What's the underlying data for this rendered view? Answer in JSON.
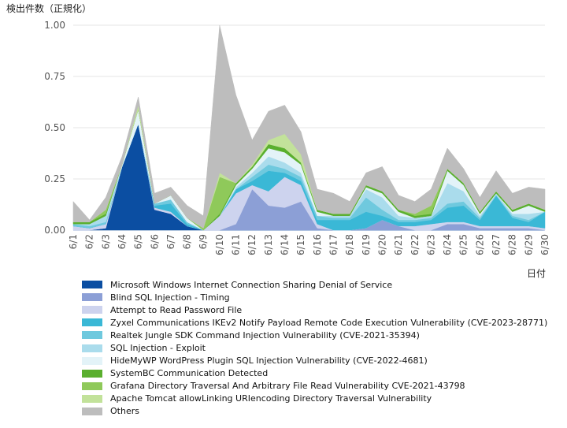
{
  "chart_data": {
    "type": "area",
    "stacked": true,
    "ylabel": "検出件数（正規化）",
    "xlabel": "日付",
    "ylim": [
      0,
      1.0
    ],
    "yticks": [
      "0.00",
      "0.25",
      "0.50",
      "0.75",
      "1.00"
    ],
    "ytick_values": [
      0,
      0.25,
      0.5,
      0.75,
      1.0
    ],
    "grid": "horizontal",
    "legend_position": "bottom",
    "categories": [
      "6/1",
      "6/2",
      "6/3",
      "6/4",
      "6/5",
      "6/6",
      "6/7",
      "6/8",
      "6/9",
      "6/10",
      "6/11",
      "6/12",
      "6/13",
      "6/14",
      "6/15",
      "6/16",
      "6/17",
      "6/18",
      "6/19",
      "6/20",
      "6/21",
      "6/22",
      "6/23",
      "6/24",
      "6/25",
      "6/26",
      "6/27",
      "6/28",
      "6/29",
      "6/30"
    ],
    "series": [
      {
        "name": "Microsoft Windows Internet Connection Sharing Denial of Service",
        "color": "#0b4ea2",
        "values": [
          0,
          0,
          0.01,
          0.31,
          0.52,
          0.1,
          0.08,
          0.02,
          0,
          0,
          0,
          0,
          0,
          0,
          0,
          0,
          0,
          0,
          0,
          0,
          0,
          0,
          0,
          0,
          0,
          0,
          0,
          0,
          0,
          0
        ]
      },
      {
        "name": "Blind SQL Injection - Timing",
        "color": "#8c9fd6",
        "values": [
          0,
          0,
          0,
          0,
          0,
          0,
          0,
          0,
          0,
          0,
          0.03,
          0.2,
          0.12,
          0.11,
          0.14,
          0.01,
          0,
          0,
          0.01,
          0.05,
          0.02,
          0,
          0,
          0.03,
          0.03,
          0.01,
          0.01,
          0.01,
          0.01,
          0
        ]
      },
      {
        "name": "Attempt to Read Password File",
        "color": "#cdd3ee",
        "values": [
          0.02,
          0.01,
          0.02,
          0,
          0,
          0.01,
          0.01,
          0,
          0,
          0.07,
          0.15,
          0.02,
          0.07,
          0.15,
          0.08,
          0.02,
          0,
          0,
          0,
          0,
          0,
          0.02,
          0.03,
          0.01,
          0.01,
          0.01,
          0.01,
          0.01,
          0.01,
          0.01
        ]
      },
      {
        "name": "Zyxel Communications IKEv2 Notify Payload Remote Code Execution Vulnerability (CVE-2023-28771)",
        "color": "#3ab8d6",
        "values": [
          0,
          0,
          0,
          0,
          0,
          0.01,
          0.04,
          0.01,
          0,
          0,
          0.02,
          0.02,
          0.1,
          0.02,
          0.02,
          0.02,
          0.05,
          0.05,
          0.08,
          0.02,
          0.02,
          0.02,
          0.02,
          0.07,
          0.08,
          0.03,
          0.15,
          0.04,
          0.02,
          0.08
        ]
      },
      {
        "name": "Realtek Jungle SDK Command Injection Vulnerability (CVE-2021-35394)",
        "color": "#6fc9de",
        "values": [
          0.01,
          0.01,
          0.01,
          0,
          0,
          0.01,
          0.02,
          0.01,
          0,
          0,
          0,
          0.02,
          0.03,
          0.02,
          0.02,
          0.02,
          0.01,
          0.01,
          0.07,
          0.03,
          0.01,
          0.01,
          0.01,
          0.02,
          0.02,
          0.01,
          0,
          0.01,
          0.01,
          0
        ]
      },
      {
        "name": "SQL Injection - Exploit",
        "color": "#aadcec",
        "values": [
          0,
          0.01,
          0.03,
          0,
          0,
          0,
          0,
          0,
          0,
          0,
          0.01,
          0.02,
          0.04,
          0.03,
          0.02,
          0,
          0.01,
          0.01,
          0.04,
          0.06,
          0.02,
          0.01,
          0.01,
          0.1,
          0.05,
          0.01,
          0.01,
          0.01,
          0.03,
          0
        ]
      },
      {
        "name": "HideMyWP WordPress Plugin SQL Injection Vulnerability (CVE-2022-4681)",
        "color": "#e3f3f8",
        "values": [
          0,
          0,
          0,
          0.01,
          0.07,
          0,
          0.02,
          0.02,
          0,
          0,
          0.01,
          0.02,
          0.04,
          0.05,
          0.04,
          0.02,
          0,
          0,
          0.01,
          0.02,
          0.02,
          0,
          0,
          0.06,
          0.03,
          0.01,
          0,
          0.01,
          0.04,
          0
        ]
      },
      {
        "name": "SystemBC Communication Detected",
        "color": "#5aaf2e",
        "values": [
          0.01,
          0.01,
          0.01,
          0,
          0,
          0,
          0,
          0,
          0,
          0.01,
          0.01,
          0.01,
          0.02,
          0.02,
          0.01,
          0.01,
          0.01,
          0.01,
          0.01,
          0.01,
          0.01,
          0.01,
          0.01,
          0.01,
          0.01,
          0.01,
          0.01,
          0.01,
          0.01,
          0.01
        ]
      },
      {
        "name": "Grafana Directory Traversal And Arbitrary File Read Vulnerability CVE-2021-43798",
        "color": "#8fc95a",
        "values": [
          0,
          0,
          0.02,
          0,
          0,
          0,
          0,
          0,
          0.01,
          0.18,
          0,
          0,
          0,
          0,
          0,
          0,
          0,
          0,
          0,
          0,
          0,
          0.01,
          0.04,
          0,
          0,
          0,
          0,
          0,
          0,
          0
        ]
      },
      {
        "name": "Apache Tomcat allowLinking URIencoding Directory Traversal Vulnerability",
        "color": "#c2e29a",
        "values": [
          0,
          0,
          0,
          0,
          0.02,
          0,
          0,
          0,
          0,
          0.02,
          0,
          0.01,
          0.02,
          0.07,
          0.04,
          0,
          0,
          0,
          0,
          0,
          0,
          0,
          0,
          0,
          0,
          0,
          0,
          0,
          0,
          0
        ]
      },
      {
        "name": "Others",
        "color": "#bdbdbd",
        "values": [
          0.1,
          0.01,
          0.06,
          0.04,
          0.04,
          0.05,
          0.04,
          0.06,
          0.06,
          0.72,
          0.43,
          0.12,
          0.14,
          0.14,
          0.11,
          0.1,
          0.1,
          0.06,
          0.06,
          0.12,
          0.07,
          0.06,
          0.08,
          0.1,
          0.07,
          0.07,
          0.1,
          0.08,
          0.08,
          0.1
        ]
      }
    ]
  }
}
